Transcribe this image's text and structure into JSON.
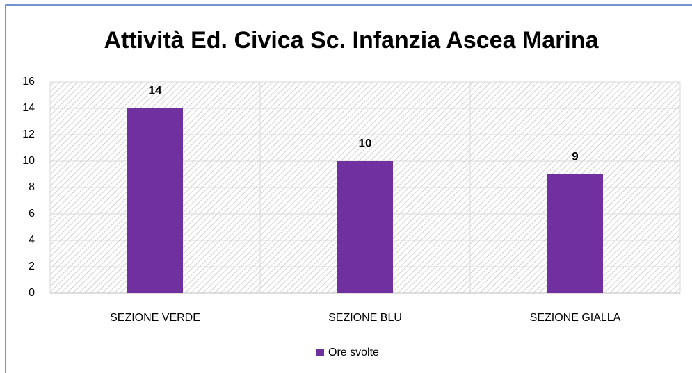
{
  "chart_data": {
    "type": "bar",
    "title": "Attività Ed. Civica Sc. Infanzia Ascea Marina",
    "categories": [
      "SEZIONE VERDE",
      "SEZIONE BLU",
      "SEZIONE GIALLA"
    ],
    "series": [
      {
        "name": "Ore svolte",
        "color": "#7030a0",
        "values": [
          14,
          10,
          9
        ]
      }
    ],
    "ylim": [
      0,
      16
    ],
    "yticks": [
      0,
      2,
      4,
      6,
      8,
      10,
      12,
      14,
      16
    ],
    "grid": true,
    "legend": "bottom",
    "data_labels": true
  }
}
